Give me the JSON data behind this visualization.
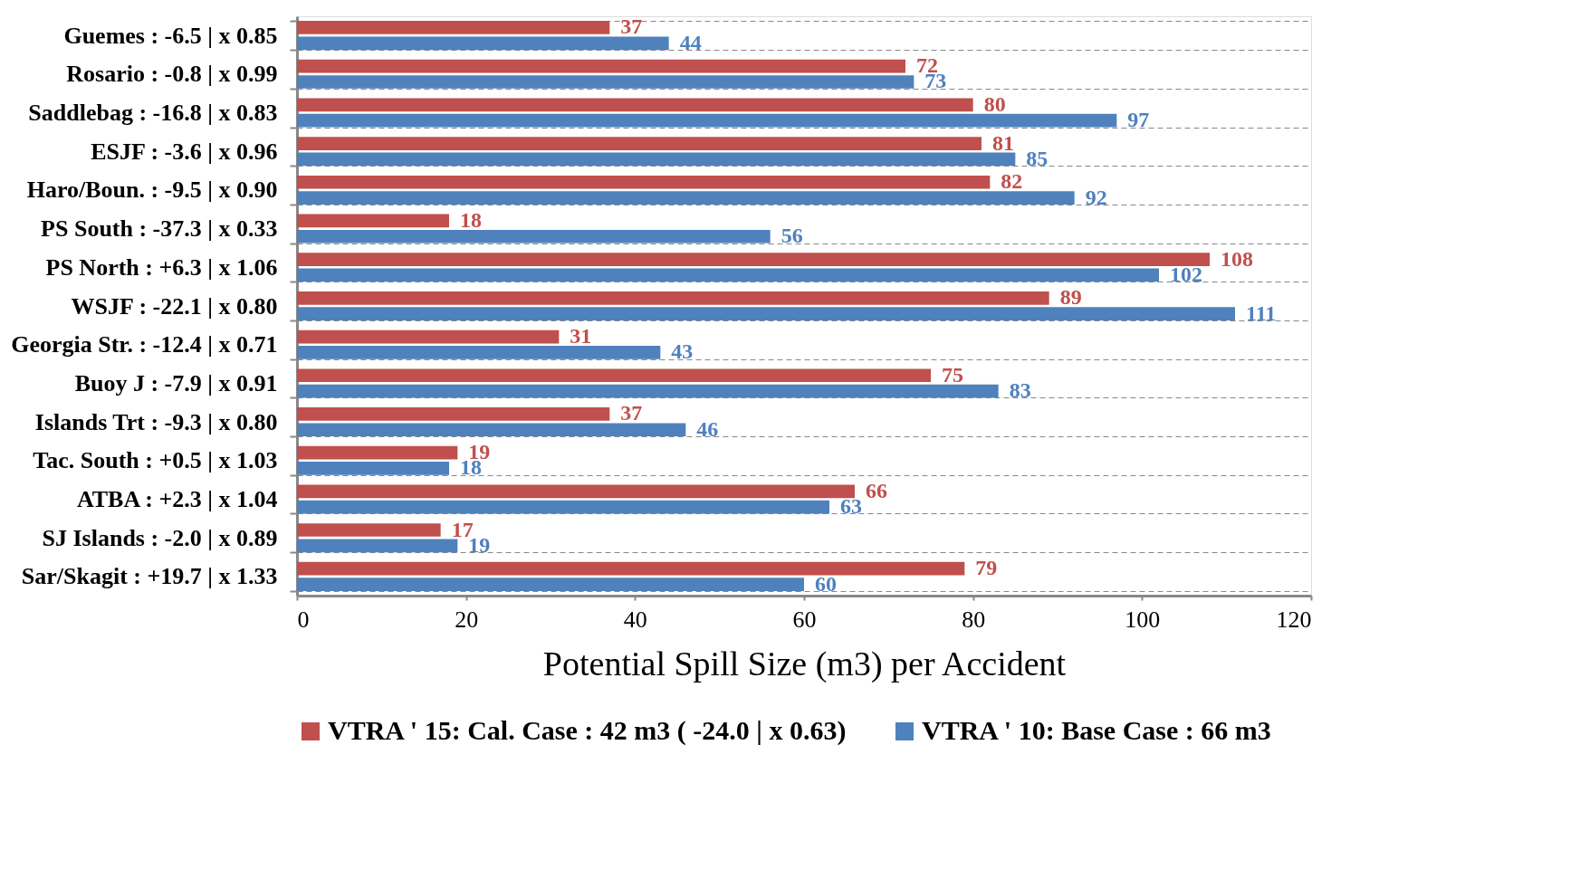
{
  "chart_data": {
    "type": "bar",
    "orientation": "horizontal",
    "xlabel": "Potential Spill Size (m3) per Accident",
    "categories": [
      "Guemes : -6.5 |  x 0.85",
      "Rosario : -0.8 |  x 0.99",
      "Saddlebag : -16.8 |  x 0.83",
      "ESJF : -3.6 |  x 0.96",
      "Haro/Boun. : -9.5 |  x 0.90",
      "PS South : -37.3 |  x 0.33",
      "PS North : +6.3 |  x 1.06",
      "WSJF : -22.1 |  x 0.80",
      "Georgia Str. : -12.4 |  x 0.71",
      "Buoy J : -7.9 |  x 0.91",
      "Islands Trt : -9.3 |  x 0.80",
      "Tac. South : +0.5 |  x 1.03",
      "ATBA : +2.3 |  x 1.04",
      "SJ Islands : -2.0 |  x 0.89",
      "Sar/Skagit : +19.7 |  x 1.33"
    ],
    "series": [
      {
        "name": "VTRA ' 15: Cal. Case : 42 m3 ( -24.0 |  x 0.63)",
        "color": "#c0504d",
        "values": [
          37,
          72,
          80,
          81,
          82,
          18,
          108,
          89,
          31,
          75,
          37,
          19,
          66,
          17,
          79
        ]
      },
      {
        "name": "VTRA ' 10: Base Case : 66 m3",
        "color": "#4f81bd",
        "values": [
          44,
          73,
          97,
          85,
          92,
          56,
          102,
          111,
          43,
          83,
          46,
          18,
          63,
          19,
          60
        ]
      }
    ],
    "xlim": [
      0,
      120
    ],
    "xticks": [
      0,
      20,
      40,
      60,
      80,
      100,
      120
    ],
    "data_labels": true,
    "grid": "y",
    "legend": "bottom"
  }
}
